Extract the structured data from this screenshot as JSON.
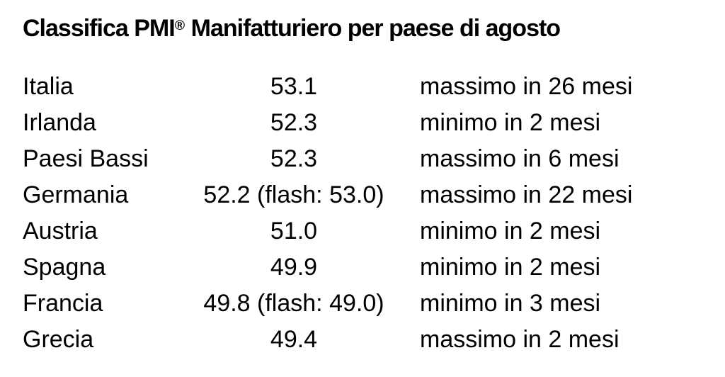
{
  "page": {
    "background_color": "#ffffff",
    "text_color": "#000000"
  },
  "title": {
    "prefix": "Classifica PMI",
    "registered_mark": "®",
    "suffix": " Manifatturiero per paese di agosto"
  },
  "table": {
    "rows": [
      {
        "country": "Italia",
        "value": "53.1",
        "trend": "massimo in 26 mesi"
      },
      {
        "country": "Irlanda",
        "value": "52.3",
        "trend": "minimo in 2 mesi"
      },
      {
        "country": "Paesi Bassi",
        "value": "52.3",
        "trend": "massimo in 6 mesi"
      },
      {
        "country": "Germania",
        "value": "52.2 (flash: 53.0)",
        "trend": "massimo in 22 mesi"
      },
      {
        "country": "Austria",
        "value": "51.0",
        "trend": "minimo in 2 mesi"
      },
      {
        "country": "Spagna",
        "value": "49.9",
        "trend": "minimo in 2 mesi"
      },
      {
        "country": "Francia",
        "value": "49.8 (flash: 49.0)",
        "trend": "minimo in 3 mesi"
      },
      {
        "country": "Grecia",
        "value": "49.4",
        "trend": "massimo in 2 mesi"
      }
    ]
  }
}
